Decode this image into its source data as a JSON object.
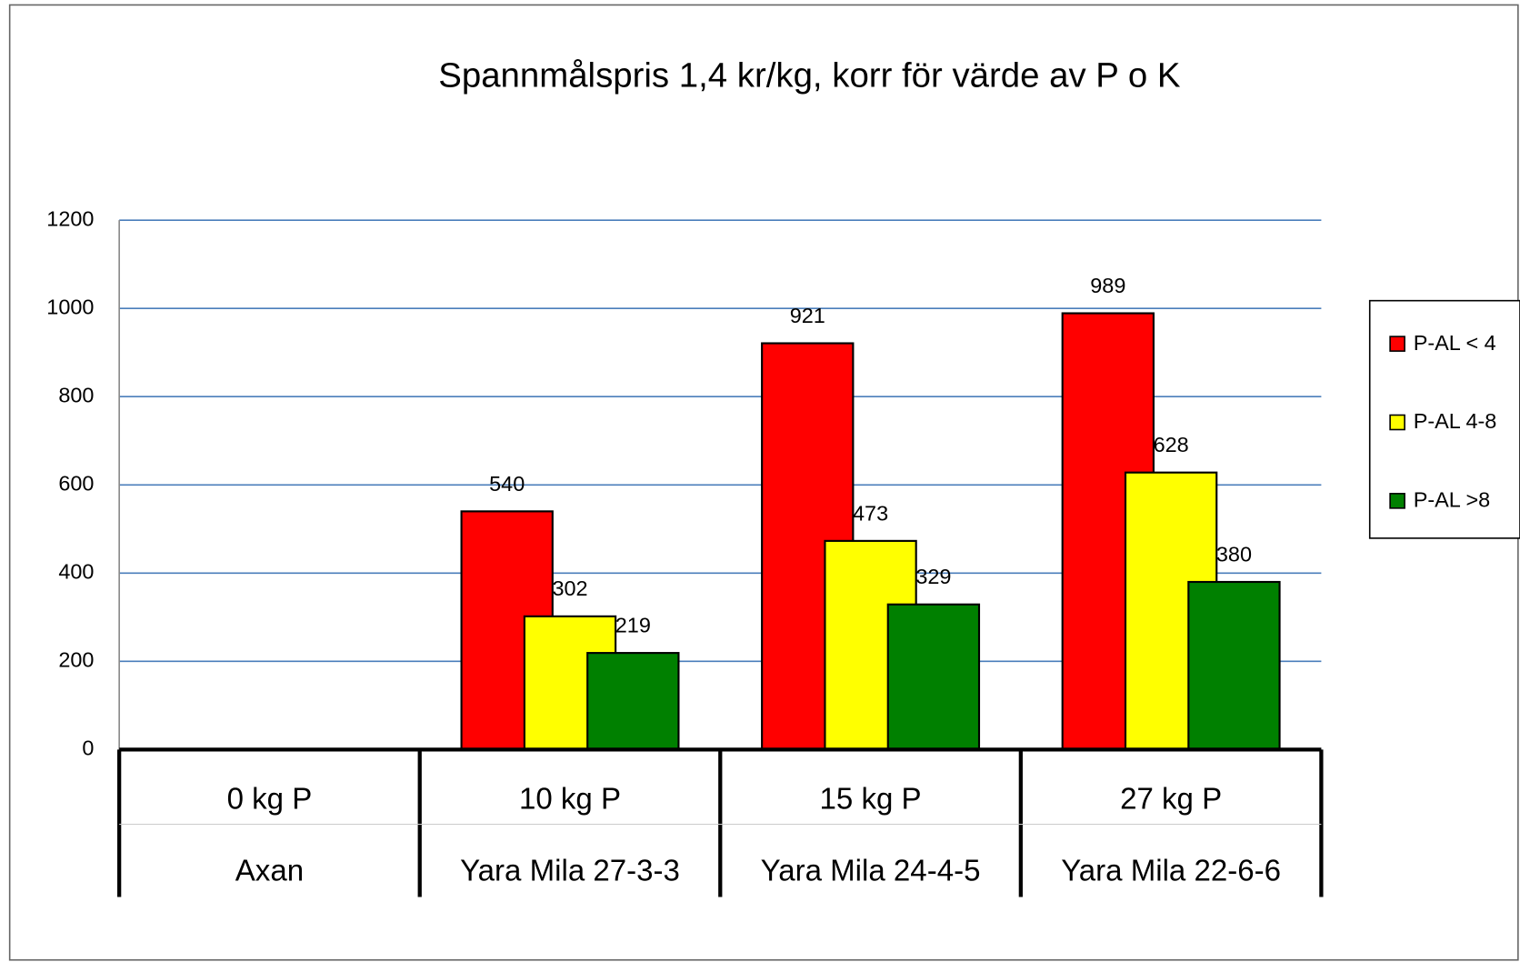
{
  "chart_data": {
    "type": "bar",
    "title": "Spannmålspris 1,4 kr/kg, korr för värde av P o K",
    "categories": [
      [
        "0 kg P",
        "Axan"
      ],
      [
        "10 kg P",
        "Yara Mila 27-3-3"
      ],
      [
        "15 kg P",
        "Yara Mila 24-4-5"
      ],
      [
        "27 kg P",
        "Yara Mila 22-6-6"
      ]
    ],
    "series": [
      {
        "name": "P-AL < 4",
        "color": "#ff0000",
        "values": [
          null,
          540,
          921,
          989
        ]
      },
      {
        "name": "P-AL 4-8",
        "color": "#ffff00",
        "values": [
          null,
          302,
          473,
          628
        ]
      },
      {
        "name": "P-AL >8",
        "color": "#008000",
        "values": [
          null,
          219,
          329,
          380
        ]
      }
    ],
    "ylim": [
      0,
      1200
    ],
    "yticks": [
      0,
      200,
      400,
      600,
      800,
      1000,
      1200
    ],
    "grid": true,
    "grid_color": "#4a7ebb",
    "legend": "right"
  }
}
